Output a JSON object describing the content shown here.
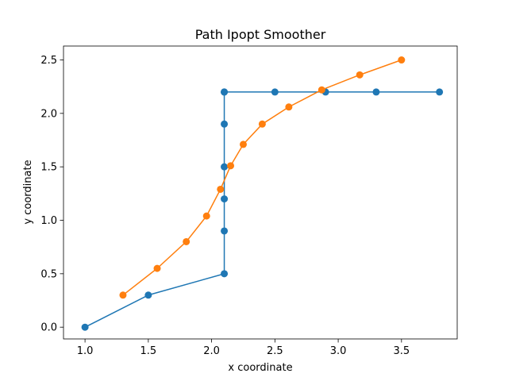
{
  "chart_data": {
    "type": "line",
    "title": "Path Ipopt Smoother",
    "xlabel": "x coordinate",
    "ylabel": "y coordinate",
    "xlim": [
      0.83,
      3.94
    ],
    "ylim": [
      -0.11,
      2.63
    ],
    "xticks": [
      1.0,
      1.5,
      2.0,
      2.5,
      3.0,
      3.5
    ],
    "xtick_labels": [
      "1.0",
      "1.5",
      "2.0",
      "2.5",
      "3.0",
      "3.5"
    ],
    "yticks": [
      0.0,
      0.5,
      1.0,
      1.5,
      2.0,
      2.5
    ],
    "ytick_labels": [
      "0.0",
      "0.5",
      "1.0",
      "1.5",
      "2.0",
      "2.5"
    ],
    "grid": false,
    "series": [
      {
        "color": "#1f77b4",
        "marker": "circle",
        "x": [
          1.0,
          1.5,
          2.1,
          2.1,
          2.1,
          2.1,
          2.1,
          2.1,
          2.1,
          2.5,
          2.9,
          3.3,
          3.8
        ],
        "y": [
          0.0,
          0.3,
          0.5,
          0.9,
          1.2,
          1.5,
          1.9,
          2.2,
          2.2,
          2.2,
          2.2,
          2.2,
          2.2
        ]
      },
      {
        "color": "#ff7f0e",
        "marker": "circle",
        "x": [
          1.3,
          1.57,
          1.8,
          1.96,
          2.07,
          2.15,
          2.25,
          2.4,
          2.61,
          2.87,
          3.17,
          3.5
        ],
        "y": [
          0.3,
          0.55,
          0.8,
          1.04,
          1.29,
          1.51,
          1.71,
          1.9,
          2.06,
          2.22,
          2.36,
          2.5
        ]
      }
    ]
  }
}
